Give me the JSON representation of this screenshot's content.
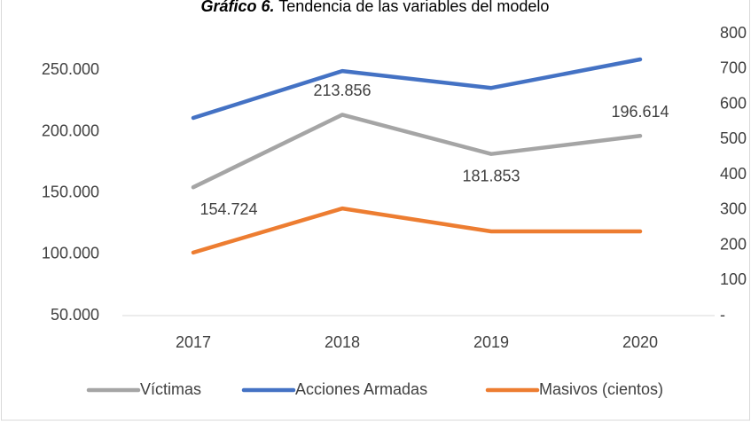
{
  "chart_data": {
    "type": "line",
    "title_prefix": "Gráfico 6.",
    "title": "Tendencia de las variables del modelo",
    "categories": [
      "2017",
      "2018",
      "2019",
      "2020"
    ],
    "series": [
      {
        "name": "Víctimas",
        "color": "#a5a5a5",
        "values": [
          154724,
          213856,
          181853,
          196614
        ],
        "value_labels": [
          "154.724",
          "213.856",
          "181.853",
          "196.614"
        ]
      },
      {
        "name": "Acciones Armadas",
        "color": "#4472c4",
        "axis": "y2",
        "values": [
          561,
          694,
          646,
          727
        ]
      },
      {
        "name": "Masivos (cientos)",
        "color": "#ed7d31",
        "axis": "y2",
        "values": [
          179,
          304,
          239,
          239
        ]
      }
    ],
    "ylim": [
      50000,
      280000
    ],
    "yticks": [
      {
        "value": 50000,
        "label": "50.000"
      },
      {
        "value": 100000,
        "label": "100.000"
      },
      {
        "value": 150000,
        "label": "150.000"
      },
      {
        "value": 200000,
        "label": "200.000"
      },
      {
        "value": 250000,
        "label": "250.000"
      }
    ],
    "y2lim": [
      0,
      800
    ],
    "y2ticks": [
      {
        "value": 0,
        "label": "-"
      },
      100,
      200,
      300,
      400,
      500,
      600,
      700,
      800
    ],
    "grid": false,
    "legend": "bottom"
  }
}
